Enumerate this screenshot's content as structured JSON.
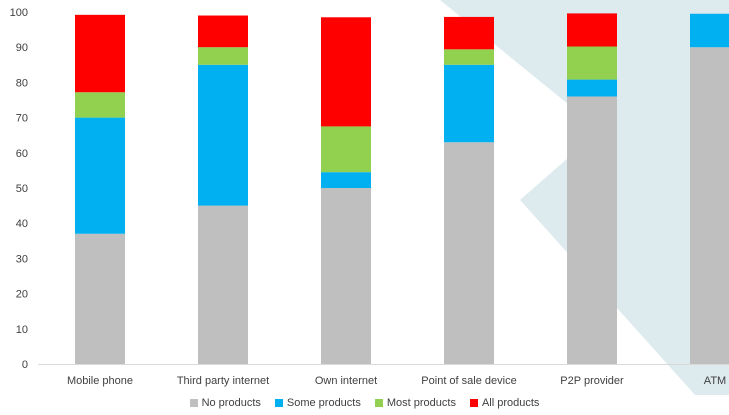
{
  "chart_data": {
    "type": "bar",
    "stacked": true,
    "categories": [
      "Mobile phone",
      "Third party internet",
      "Own internet",
      "Point of sale device",
      "P2P provider",
      "ATM"
    ],
    "series": [
      {
        "name": "No products",
        "color": "#bfbfbf",
        "values": [
          37,
          45,
          50,
          63,
          76,
          90
        ]
      },
      {
        "name": "Some products",
        "color": "#00b0f0",
        "values": [
          33,
          40,
          4.5,
          22,
          4.8,
          9.5
        ]
      },
      {
        "name": "Most products",
        "color": "#92d050",
        "values": [
          7.2,
          5,
          13,
          4.4,
          9.4,
          0
        ]
      },
      {
        "name": "All products",
        "color": "#ff0000",
        "values": [
          22,
          9,
          31,
          9.2,
          9.4,
          0
        ]
      }
    ],
    "y_ticks": [
      0,
      10,
      20,
      30,
      40,
      50,
      60,
      70,
      80,
      90,
      100
    ],
    "ylim": [
      0,
      100
    ],
    "grid": false,
    "legend_position": "bottom",
    "background_color": "#ddeaee"
  }
}
